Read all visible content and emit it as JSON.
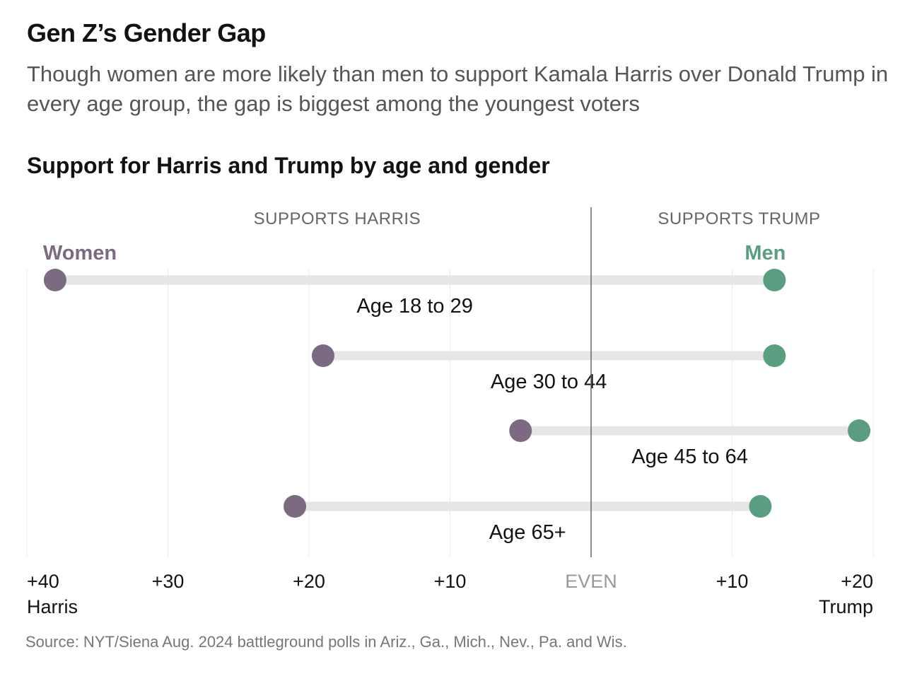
{
  "title": "Gen Z’s Gender Gap",
  "subtitle": "Though women are more likely than men to support Kamala Harris over Donald Trump in every age group, the gap is biggest among the youngest voters",
  "chart_title": "Support for Harris and Trump by age and gender",
  "source": "Source: NYT/Siena Aug. 2024 battleground polls in Ariz., Ga., Mich., Nev., Pa. and Wis.",
  "colors": {
    "women": "#7b6a82",
    "men": "#5a9e82",
    "track": "#e6e6e6",
    "grid": "#ececec",
    "zero": "#666666"
  },
  "chart_data": {
    "type": "dumbbell",
    "x_axis": {
      "range": [
        -40,
        20
      ],
      "direction": "negative = Harris margin, positive = Trump margin",
      "ticks": [
        {
          "value": -40,
          "label": "+40",
          "sublabel": "Harris"
        },
        {
          "value": -30,
          "label": "+30"
        },
        {
          "value": -20,
          "label": "+20"
        },
        {
          "value": -10,
          "label": "+10"
        },
        {
          "value": 0,
          "label": "EVEN"
        },
        {
          "value": 10,
          "label": "+10"
        },
        {
          "value": 20,
          "label": "+20",
          "sublabel": "Trump"
        }
      ],
      "grid": true
    },
    "side_labels": {
      "left": "SUPPORTS HARRIS",
      "right": "SUPPORTS TRUMP"
    },
    "legend": {
      "women": "Women",
      "men": "Men"
    },
    "categories": [
      "Age 18 to 29",
      "Age 30 to 44",
      "Age 45 to 64",
      "Age 65+"
    ],
    "series": [
      {
        "name": "Women",
        "values": [
          -38,
          -19,
          -5,
          -21
        ]
      },
      {
        "name": "Men",
        "values": [
          13,
          13,
          19,
          12
        ]
      }
    ]
  }
}
